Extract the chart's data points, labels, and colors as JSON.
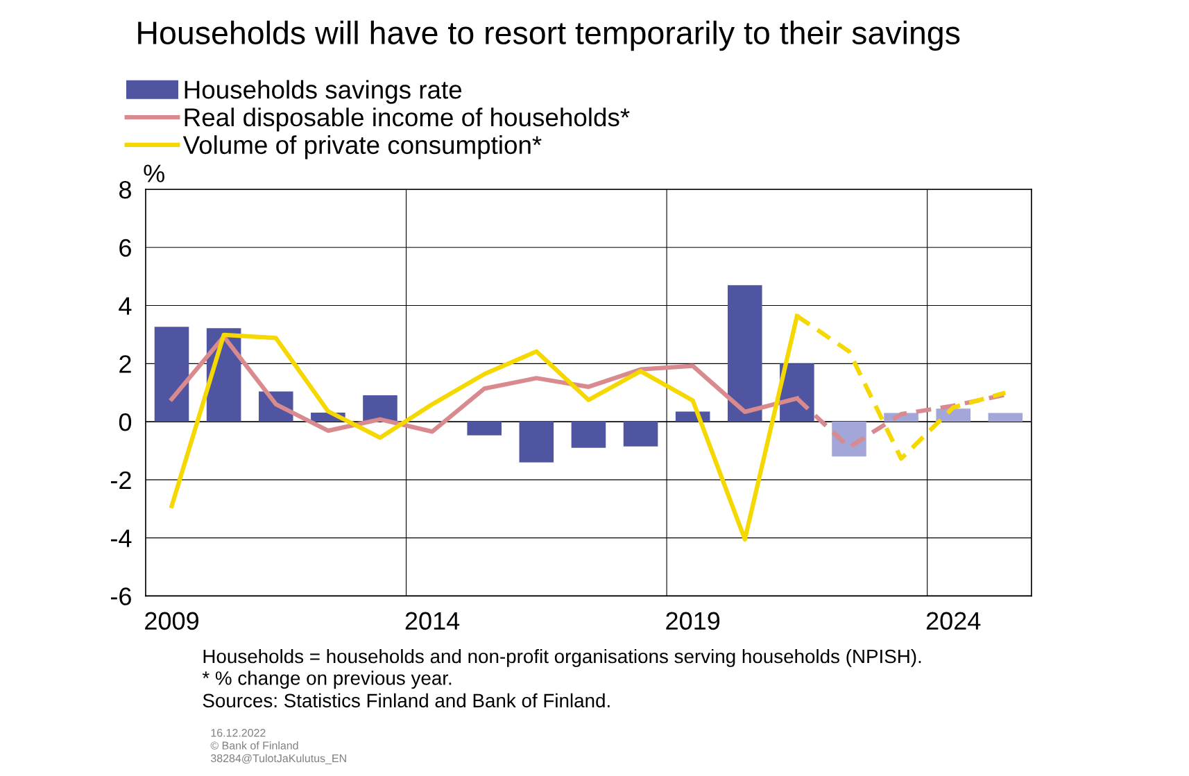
{
  "chart_data": {
    "type": "bar",
    "title": "Households will have to resort temporarily to their savings",
    "ylabel": "%",
    "categories": [
      "2009",
      null,
      null,
      null,
      null,
      "2014",
      null,
      null,
      null,
      null,
      "2019",
      null,
      null,
      null,
      null,
      "2024",
      null
    ],
    "series": [
      {
        "name": "Households savings rate",
        "color": "#4f55a0",
        "colors": [
          "#4f55a0",
          "#4f55a0",
          "#4f55a0",
          "#4f55a0",
          "#4f55a0",
          "#4f55a0",
          "#4f55a0",
          "#4f55a0",
          "#4f55a0",
          "#4f55a0",
          "#4f55a0",
          "#4f55a0",
          "#4f55a0",
          "#a3a6d8",
          "#a3a6d8",
          "#a3a6d8",
          "#a3a6d8"
        ],
        "values": [
          3.27,
          3.22,
          1.04,
          0.31,
          0.91,
          0,
          -0.47,
          -1.4,
          -0.9,
          -0.85,
          0.35,
          4.7,
          2.0,
          -1.2,
          0.3,
          0.45,
          0.3
        ]
      },
      {
        "name": "Real disposable income of households*",
        "type": "line",
        "color": "#d98a8e",
        "line_style": "solid",
        "values": [
          0.78,
          2.93,
          0.6,
          -0.31,
          0.08,
          -0.34,
          1.14,
          1.5,
          1.2,
          1.8,
          1.92,
          0.34,
          0.8,
          null,
          null,
          null,
          null
        ]
      },
      {
        "name": "Volume of private consumption*",
        "type": "line",
        "color": "#f5d800",
        "line_style": "solid",
        "values": [
          -2.9,
          2.99,
          2.88,
          0.36,
          -0.55,
          0.6,
          1.64,
          2.42,
          0.75,
          1.74,
          0.73,
          -4.05,
          3.64,
          null,
          null,
          null,
          null
        ]
      },
      {
        "type": "line",
        "color": "#d98a8e",
        "line_style": "dashed",
        "values": [
          null,
          null,
          null,
          null,
          null,
          null,
          null,
          null,
          null,
          null,
          null,
          null,
          0.8,
          -0.88,
          0.26,
          0.55,
          0.93
        ]
      },
      {
        "type": "line",
        "color": "#f5d800",
        "line_style": "dashed",
        "values": [
          null,
          null,
          null,
          null,
          null,
          null,
          null,
          null,
          null,
          null,
          null,
          null,
          3.64,
          2.42,
          -1.27,
          0.49,
          1.0
        ]
      }
    ],
    "ylim": [
      -6,
      8
    ],
    "yticks": [
      -6,
      -4,
      -2,
      0,
      2,
      4,
      6,
      8
    ],
    "grid": true,
    "legend": "top left",
    "annotations": [
      "Households = households and non-profit organisations serving households (NPISH).",
      "* % change on previous year.",
      "Sources: Statistics Finland and Bank of Finland.",
      "16.12.2022\n© Bank of Finland\n38284@TulotJaKulutus_EN"
    ]
  }
}
